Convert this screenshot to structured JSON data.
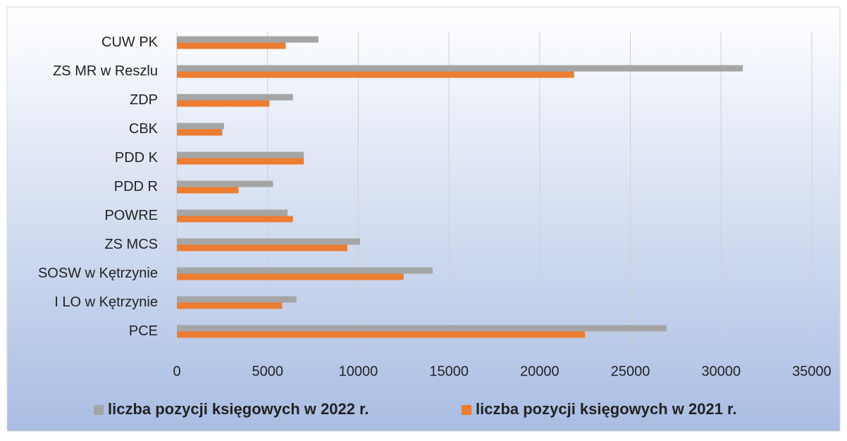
{
  "chart_data": {
    "type": "hbar",
    "categories": [
      "CUW PK",
      "ZS MR w Reszlu",
      "ZDP",
      "CBK",
      "PDD K",
      "PDD R",
      "POWRE",
      "ZS MCS",
      "SOSW w Kętrzynie",
      "I LO w Kętrzynie",
      "PCE"
    ],
    "series": [
      {
        "name": "liczba pozycji księgowych w 2022 r.",
        "color": "#a5a5a5",
        "values": [
          7800,
          31200,
          6400,
          2600,
          7000,
          5300,
          6100,
          10100,
          14100,
          6600,
          27000
        ]
      },
      {
        "name": "liczba pozycji księgowych w 2021 r.",
        "color": "#ed7d31",
        "values": [
          6000,
          21900,
          5100,
          2500,
          7000,
          3400,
          6400,
          9400,
          12500,
          5800,
          22500
        ]
      }
    ],
    "xlim": [
      0,
      35000
    ],
    "xticks": [
      0,
      5000,
      10000,
      15000,
      20000,
      25000,
      30000,
      35000
    ],
    "grid": true,
    "legend": "bottom"
  }
}
